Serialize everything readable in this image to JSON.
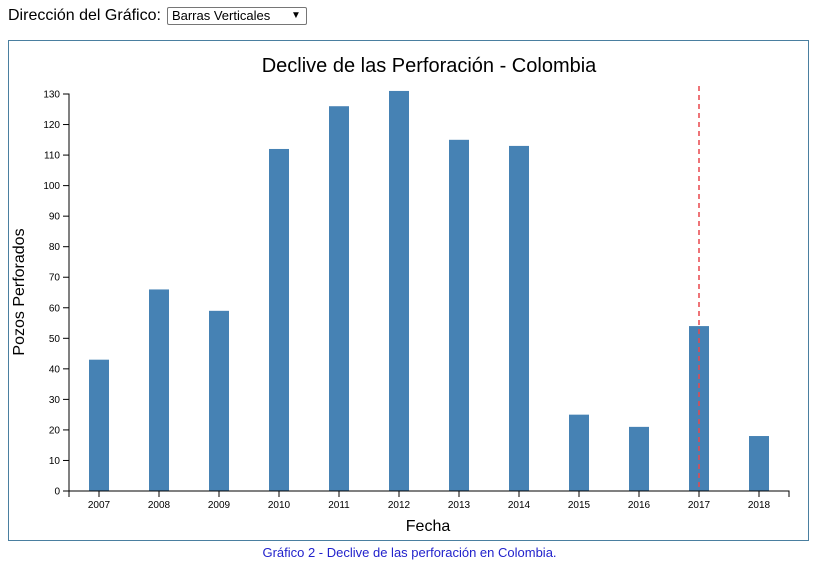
{
  "controls": {
    "label": "Dirección del Gráfico:",
    "select_value": "Barras Verticales"
  },
  "caption": "Gráfico 2 - Declive de las perforación en Colombia.",
  "chart_data": {
    "type": "bar",
    "title": "Declive de las Perforación - Colombia",
    "xlabel": "Fecha",
    "ylabel": "Pozos Perforados",
    "categories": [
      "2007",
      "2008",
      "2009",
      "2010",
      "2011",
      "2012",
      "2013",
      "2014",
      "2015",
      "2016",
      "2017",
      "2018"
    ],
    "values": [
      43,
      66,
      59,
      112,
      126,
      131,
      115,
      113,
      25,
      21,
      54,
      18
    ],
    "ylim": [
      0,
      130
    ],
    "yticks": [
      0,
      10,
      20,
      30,
      40,
      50,
      60,
      70,
      80,
      90,
      100,
      110,
      120,
      130
    ],
    "grid": false,
    "bar_color": "#4682b4",
    "annotation": {
      "type": "vertical-dashed-line",
      "x": "2017",
      "color": "#e8474c"
    }
  }
}
